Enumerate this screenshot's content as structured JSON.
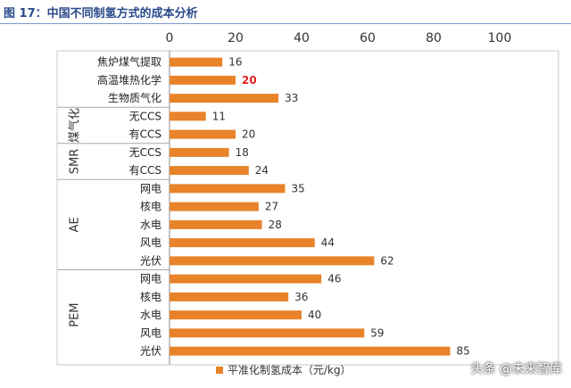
{
  "figure_title": "图 17：中国不同制氢方式的成本分析",
  "watermark": "头条 @未来智库",
  "chart_data": {
    "type": "bar",
    "orientation": "horizontal",
    "x_ticks": [
      0,
      20,
      40,
      60,
      80,
      100
    ],
    "xlim": [
      0,
      100
    ],
    "grid": false,
    "legend": {
      "label": "平准化制氢成本（元/kg）",
      "position": "bottom"
    },
    "bar_color": "#e8832a",
    "highlight_color": "#e02020",
    "groups": [
      {
        "label": "",
        "rows": [
          0,
          1,
          2
        ]
      },
      {
        "label": "煤气化",
        "rows": [
          3,
          4
        ]
      },
      {
        "label": "SMR",
        "rows": [
          5,
          6
        ]
      },
      {
        "label": "AE",
        "rows": [
          7,
          8,
          9,
          10,
          11
        ]
      },
      {
        "label": "PEM",
        "rows": [
          12,
          13,
          14,
          15,
          16
        ]
      }
    ],
    "categories": [
      "焦炉煤气提取",
      "高温堆热化学",
      "生物质气化",
      "无CCS",
      "有CCS",
      "无CCS",
      "有CCS",
      "网电",
      "核电",
      "水电",
      "风电",
      "光伏",
      "网电",
      "核电",
      "水电",
      "风电",
      "光伏"
    ],
    "values": [
      16,
      20,
      33,
      11,
      20,
      18,
      24,
      35,
      27,
      28,
      44,
      62,
      46,
      36,
      40,
      59,
      85
    ],
    "highlighted": [
      1
    ]
  }
}
